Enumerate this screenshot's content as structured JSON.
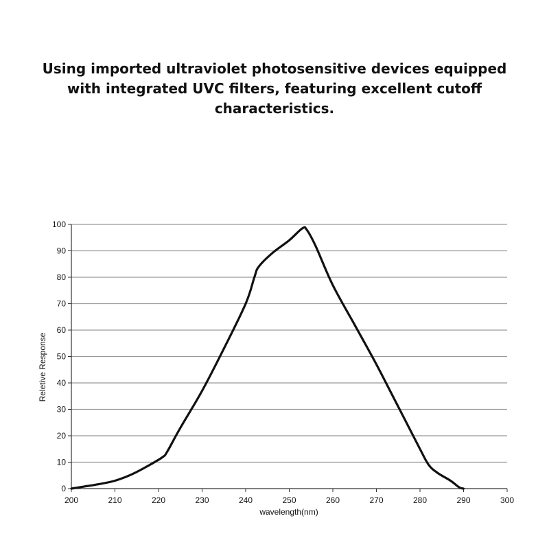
{
  "headline": "Using imported ultraviolet photosensitive devices equipped with integrated UVC filters, featuring excellent cutoff characteristics.",
  "chart_data": {
    "type": "line",
    "title": "",
    "xlabel": "wavelength(nm)",
    "ylabel": "Reletive Response",
    "xlim": [
      200,
      300
    ],
    "ylim": [
      0,
      100
    ],
    "x_ticks": [
      200,
      210,
      220,
      230,
      240,
      250,
      260,
      270,
      280,
      290,
      300
    ],
    "y_ticks": [
      0,
      10,
      20,
      30,
      40,
      50,
      60,
      70,
      80,
      90,
      100
    ],
    "grid": "horizontal",
    "line_color": "#111111",
    "grid_color": "#999999",
    "series": [
      {
        "x": [
          200,
          203,
          206,
          210,
          214,
          218,
          221,
          222,
          225,
          230,
          235,
          240,
          242,
          243,
          246,
          250,
          253,
          254,
          256,
          260,
          265,
          270,
          275,
          280,
          282,
          284,
          287,
          289,
          290
        ],
        "y": [
          0,
          0.8,
          1.6,
          3,
          5.5,
          9,
          12,
          14,
          23,
          37,
          53,
          70,
          80,
          84,
          89,
          94,
          98.5,
          98,
          92,
          77,
          62,
          47,
          31,
          15,
          9,
          6,
          3,
          0.5,
          0
        ]
      }
    ]
  }
}
